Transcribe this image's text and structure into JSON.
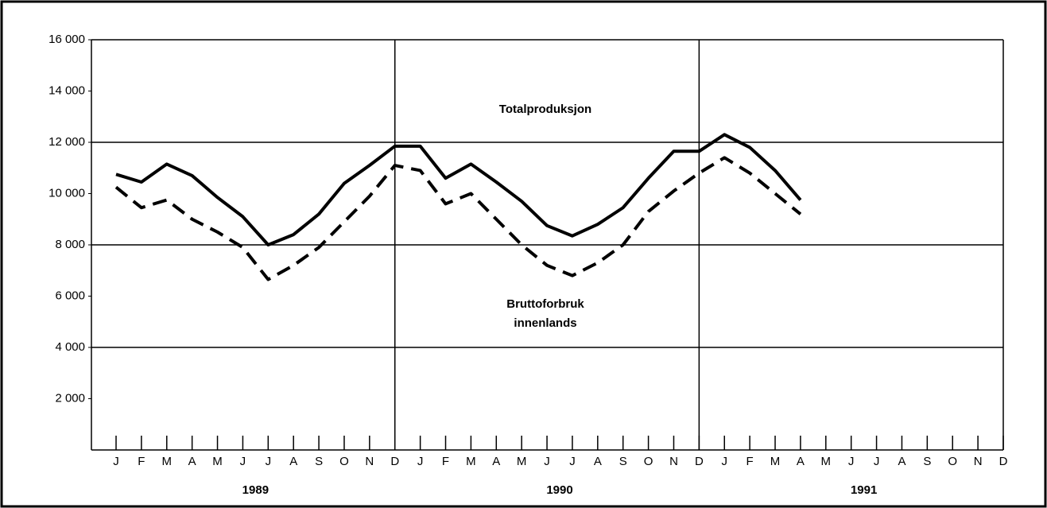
{
  "chart_data": {
    "type": "line",
    "categories": [
      "J",
      "F",
      "M",
      "A",
      "M",
      "J",
      "J",
      "A",
      "S",
      "O",
      "N",
      "D",
      "J",
      "F",
      "M",
      "A",
      "M",
      "J",
      "J",
      "A",
      "S",
      "O",
      "N",
      "D",
      "J",
      "F",
      "M",
      "A",
      "M",
      "J",
      "J",
      "A",
      "S",
      "O",
      "N",
      "D"
    ],
    "year_labels": [
      "1989",
      "1990",
      "1991"
    ],
    "series": [
      {
        "name": "Totalproduksjon",
        "color": "#000000",
        "dash": false,
        "values": [
          10750,
          10450,
          11150,
          10700,
          9850,
          9100,
          8000,
          8400,
          9200,
          10400,
          11100,
          11850,
          11850,
          10600,
          11150,
          10450,
          9700,
          8750,
          8350,
          8800,
          9450,
          10600,
          11650,
          11650,
          12300,
          11800,
          10900,
          9750,
          null,
          null,
          null,
          null,
          null,
          null,
          null,
          null
        ]
      },
      {
        "name": "Bruttoforbruk innenlands",
        "color": "#000000",
        "dash": true,
        "values": [
          10250,
          9450,
          9750,
          9000,
          8500,
          7900,
          6650,
          7200,
          7900,
          8900,
          9900,
          11100,
          10900,
          9600,
          10000,
          9000,
          8000,
          7200,
          6800,
          7300,
          8000,
          9300,
          10100,
          10800,
          11400,
          10800,
          10000,
          9200,
          null,
          null,
          null,
          null,
          null,
          null,
          null,
          null
        ]
      }
    ],
    "annotations": [
      "Totalproduksjon",
      "Bruttoforbruk",
      "innenlands"
    ],
    "ylim": [
      0,
      16000
    ],
    "yticks": [
      {
        "value": 2000,
        "label": "2 000"
      },
      {
        "value": 4000,
        "label": "4 000"
      },
      {
        "value": 6000,
        "label": "6 000"
      },
      {
        "value": 8000,
        "label": "8 000"
      },
      {
        "value": 10000,
        "label": "10 000"
      },
      {
        "value": 12000,
        "label": "12 000"
      },
      {
        "value": 14000,
        "label": "14 000"
      },
      {
        "value": 16000,
        "label": "16 000"
      }
    ],
    "grid": true
  }
}
